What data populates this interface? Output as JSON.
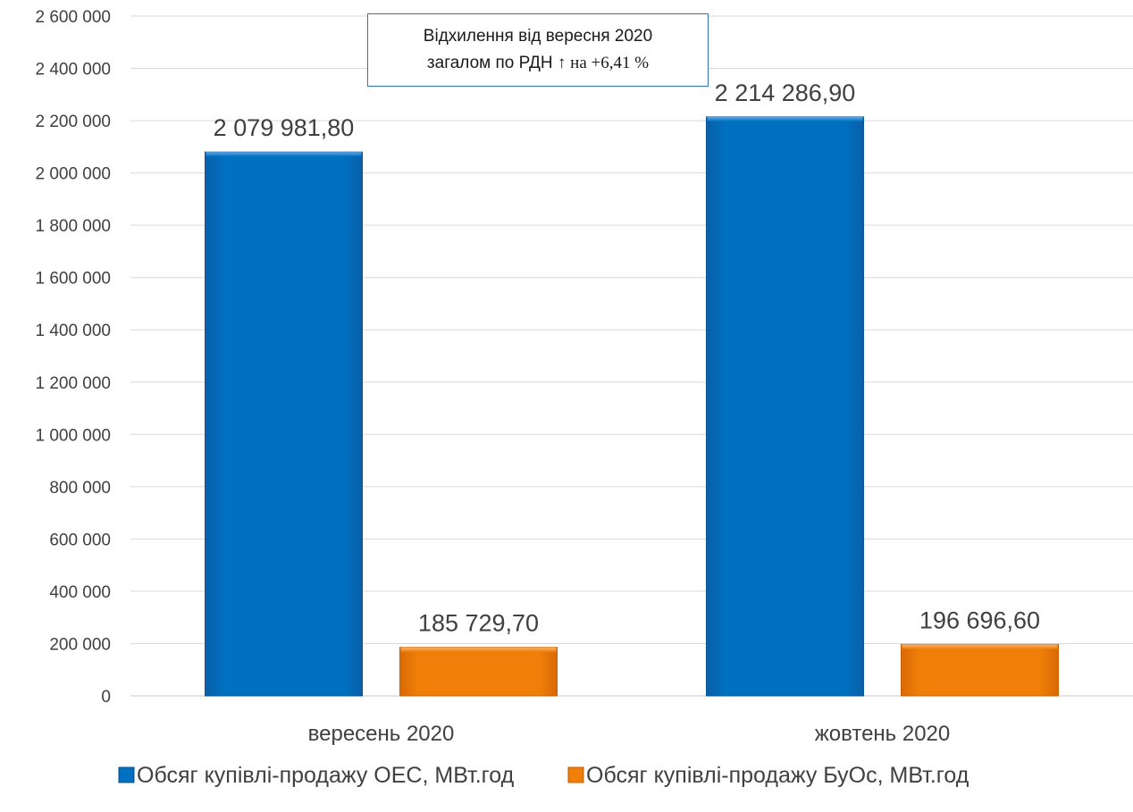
{
  "chart_data": {
    "type": "bar",
    "categories": [
      "вересень 2020",
      "жовтень 2020"
    ],
    "series": [
      {
        "name": "Обсяг купівлі-продажу ОЕС, МВт.год",
        "values": [
          2079981.8,
          2214286.9
        ],
        "labels": [
          "2 079 981,80",
          "2 214 286,90"
        ],
        "color": "#0070C0"
      },
      {
        "name": "Обсяг купівлі-продажу БуОс, МВт.год",
        "values": [
          185729.7,
          196696.6
        ],
        "labels": [
          "185 729,70",
          "196 696,60"
        ],
        "color": "#F07F09"
      }
    ],
    "ylim": [
      0,
      2600000
    ],
    "yticks": [
      0,
      200000,
      400000,
      600000,
      800000,
      1000000,
      1200000,
      1400000,
      1600000,
      1800000,
      2000000,
      2200000,
      2400000,
      2600000
    ],
    "ytick_labels": [
      "0",
      "200 000",
      "400 000",
      "600 000",
      "800 000",
      "1 000 000",
      "1 200 000",
      "1 400 000",
      "1 600 000",
      "1 800 000",
      "2 000 000",
      "2 200 000",
      "2 400 000",
      "2 600 000"
    ],
    "grid": true,
    "legend_position": "bottom",
    "annotation": {
      "line1": "Відхилення від вересня 2020",
      "line2_main": "загалом по РДН ↑",
      "line2_tail": " на +6,41 %"
    }
  }
}
